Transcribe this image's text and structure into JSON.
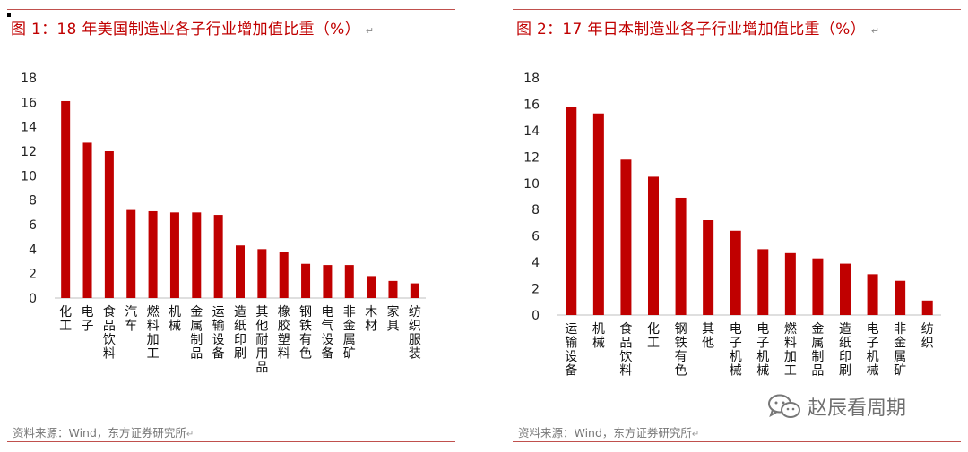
{
  "colors": {
    "bar": "#c00000",
    "rule": "#c0504d",
    "title": "#c00000",
    "axis": "#bfbfbf"
  },
  "return_mark": "↵",
  "watermark": {
    "text": "赵辰看周期",
    "icon": "wechat-icon"
  },
  "charts": {
    "left": {
      "title": "图 1：18 年美国制造业各子行业增加值比重（%）",
      "source": "资料来源：Wind，东方证券研究所"
    },
    "right": {
      "title": "图 2：17 年日本制造业各子行业增加值比重（%）",
      "source": "资料来源：Wind，东方证券研究所"
    }
  },
  "chart_data": [
    {
      "type": "bar",
      "title": "图 1：18 年美国制造业各子行业增加值比重（%）",
      "categories": [
        "化工",
        "电子",
        "食品饮料",
        "汽车",
        "燃料加工",
        "机械",
        "金属制品",
        "运输设备",
        "造纸印刷",
        "其他耐用品",
        "橡胶塑料",
        "钢铁有色",
        "电气设备",
        "非金属矿",
        "木材",
        "家具",
        "纺织服装"
      ],
      "values": [
        16.1,
        12.7,
        12.0,
        7.2,
        7.1,
        7.0,
        7.0,
        6.8,
        4.3,
        4.0,
        3.8,
        2.8,
        2.7,
        2.7,
        1.8,
        1.4,
        1.2
      ],
      "ylim": [
        0,
        18
      ],
      "yticks": [
        "0",
        "2",
        "4",
        "6",
        "8",
        "10",
        "12",
        "14",
        "16",
        "18"
      ],
      "xlabel": "",
      "ylabel": "",
      "grid": false,
      "legend": "none"
    },
    {
      "type": "bar",
      "title": "图 2：17 年日本制造业各子行业增加值比重（%）",
      "categories": [
        "运输设备",
        "机械",
        "食品饮料",
        "化工",
        "钢铁有色",
        "其他",
        "电子机械",
        "电子机械",
        "燃料加工",
        "金属制品",
        "造纸印刷",
        "电子机械",
        "非金属矿",
        "纺织"
      ],
      "values": [
        15.8,
        15.3,
        11.8,
        10.5,
        8.9,
        7.2,
        6.4,
        5.0,
        4.7,
        4.3,
        3.9,
        3.1,
        2.6,
        1.1
      ],
      "ylim": [
        0,
        18
      ],
      "yticks": [
        "0",
        "2",
        "4",
        "6",
        "8",
        "10",
        "12",
        "14",
        "16",
        "18"
      ],
      "xlabel": "",
      "ylabel": "",
      "grid": false,
      "legend": "none"
    }
  ]
}
